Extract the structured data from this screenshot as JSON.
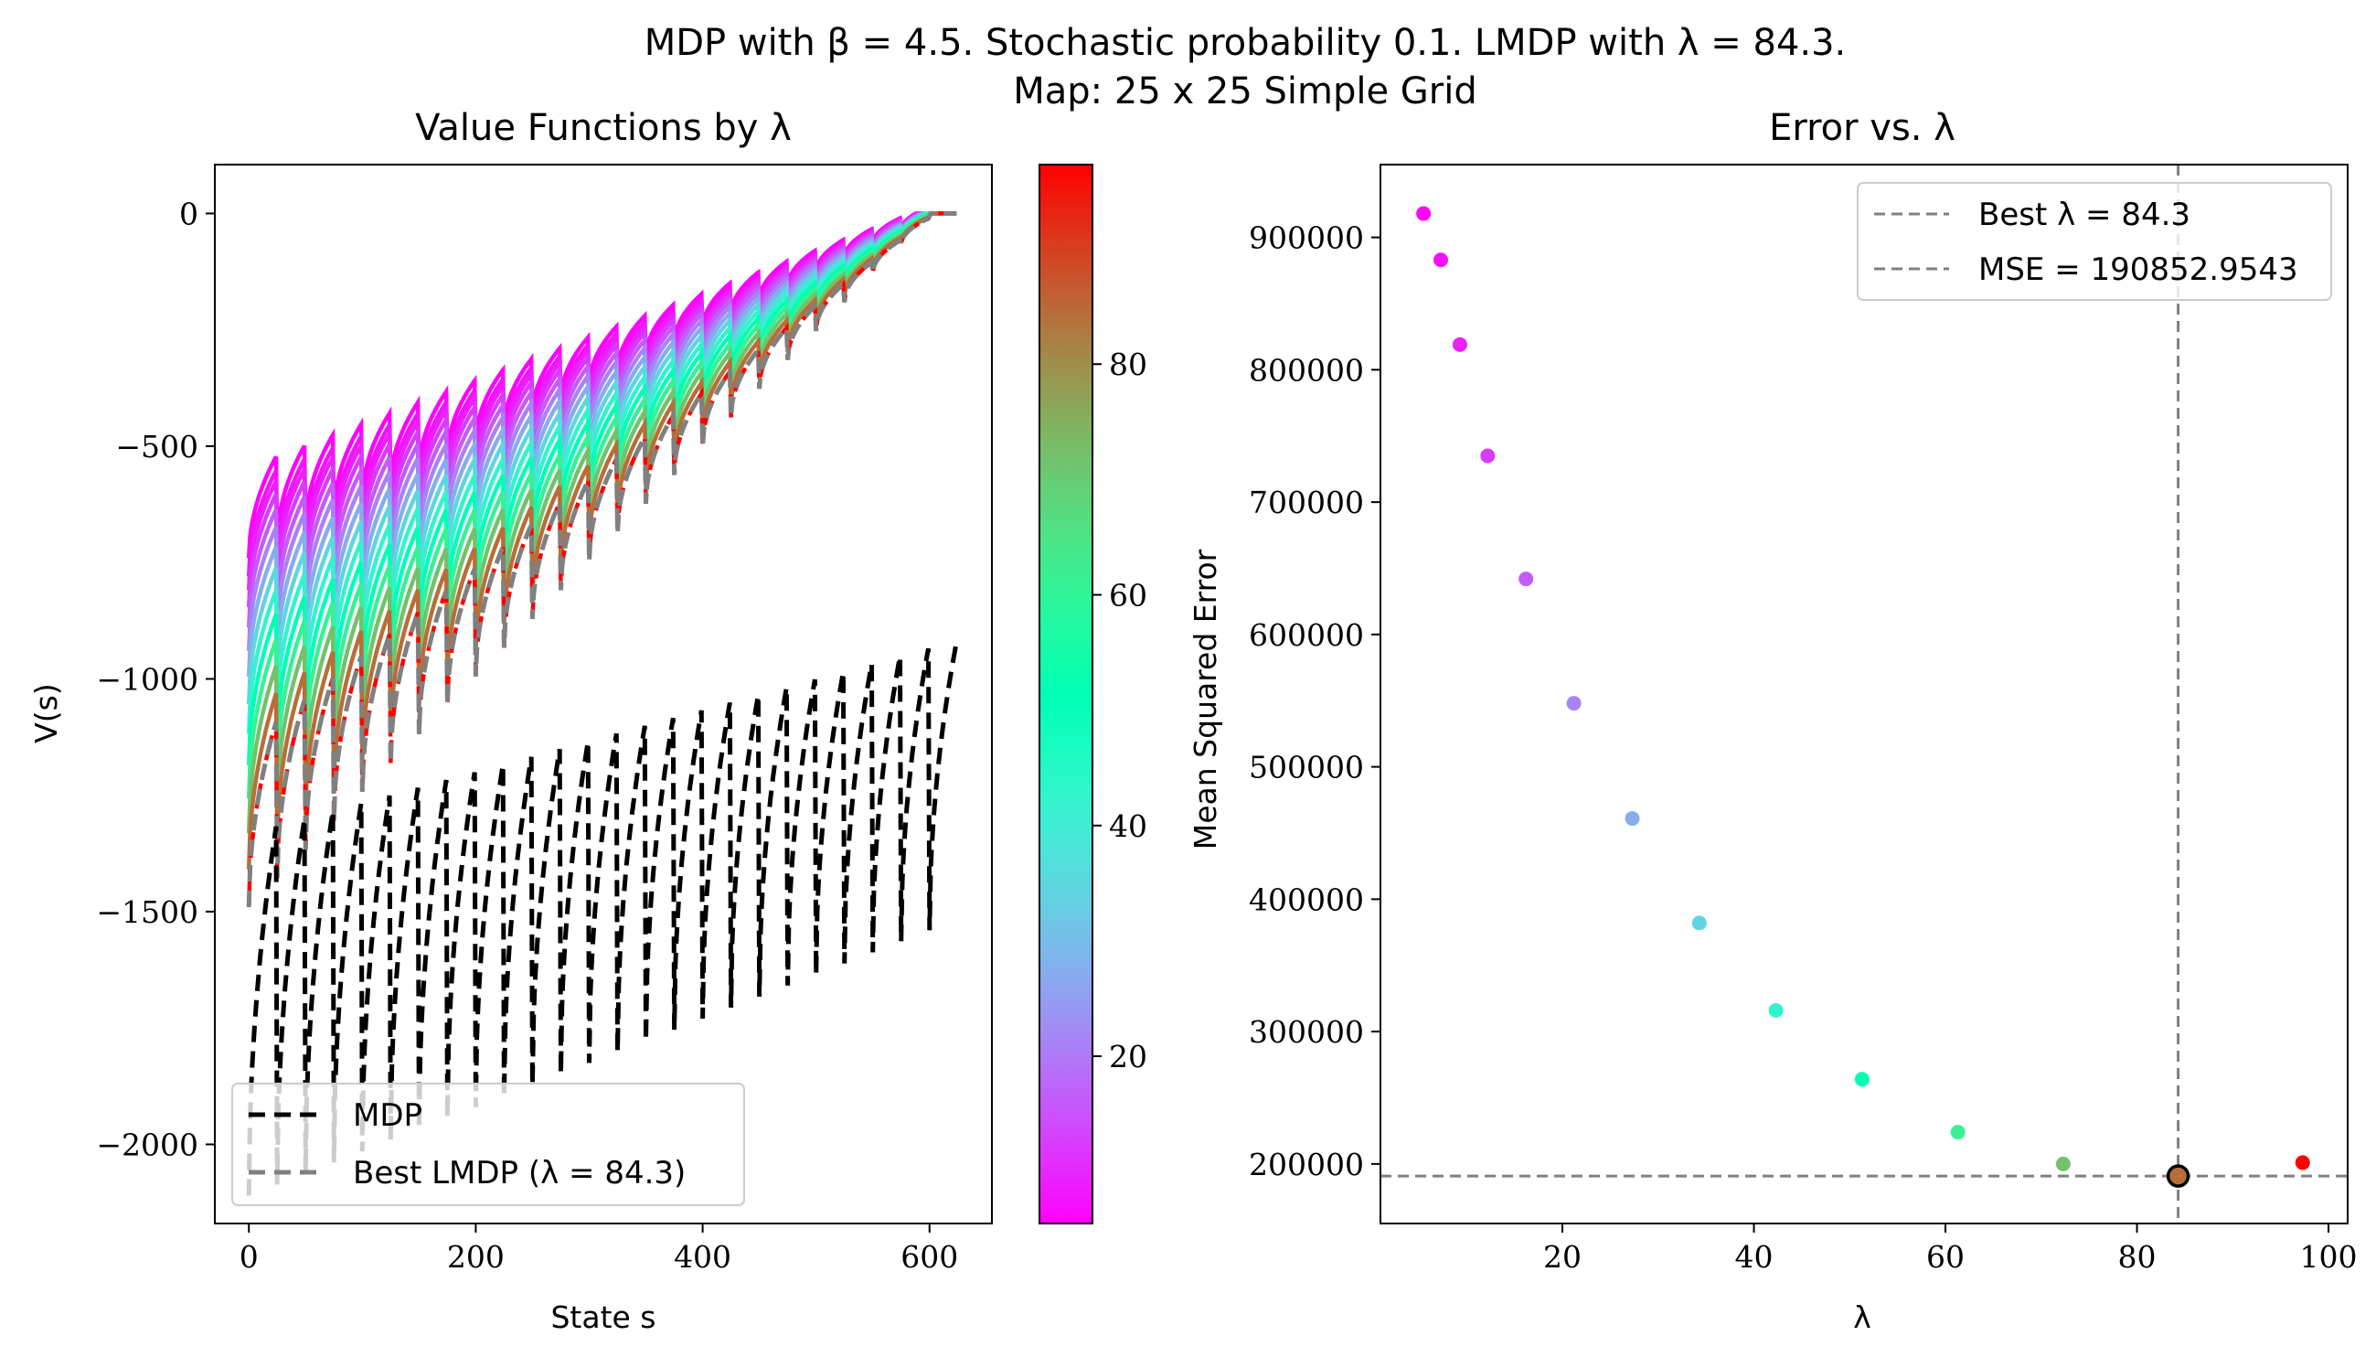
{
  "suptitle": {
    "line1": "MDP with β = 4.5. Stochastic probability 0.1. LMDP with λ = 84.3.",
    "line2": "Map: 25 x 25 Simple Grid"
  },
  "chart_data": [
    {
      "type": "line",
      "title": "Value Functions by λ",
      "xlabel": "State s",
      "ylabel": "V(s)",
      "xlim": [
        -30,
        655
      ],
      "ylim": [
        -2170,
        105
      ],
      "xticks": [
        0,
        200,
        400,
        600
      ],
      "yticks": [
        0,
        -500,
        -1000,
        -1500,
        -2000
      ],
      "xtick_labels": [
        "0",
        "200",
        "400",
        "600"
      ],
      "ytick_labels": [
        "0",
        "−500",
        "−1000",
        "−1500",
        "−2000"
      ],
      "grid_size": 25,
      "n_states": 625,
      "lambdas": [
        5.5,
        7.3,
        9.3,
        12.2,
        16.2,
        21.2,
        27.3,
        34.3,
        42.3,
        51.3,
        61.3,
        72.3,
        84.3,
        97.3
      ],
      "series": [
        {
          "name": "MDP",
          "style": "black dashed",
          "row_start_value": -2110,
          "row_end_min": -1540
        },
        {
          "name": "Best LMDP (λ = 84.3)",
          "style": "gray dashed",
          "lambda": 84.3,
          "row_start_value": -1490
        }
      ],
      "family_row_start_values": {
        "lambda_5.5": -740,
        "lambda_97.3": -1490
      },
      "legend": [
        "MDP",
        "Best LMDP (λ = 84.3)"
      ],
      "legend_position": "lower left",
      "colorbar": {
        "min": 5.5,
        "max": 97.3,
        "ticks": [
          20,
          40,
          60,
          80
        ],
        "tick_labels": [
          "20",
          "40",
          "60",
          "80"
        ],
        "colormap": "rainbow"
      }
    },
    {
      "type": "scatter",
      "title": "Error vs. λ",
      "xlabel": "λ",
      "ylabel": "Mean Squared Error",
      "xlim": [
        1.0,
        102.0
      ],
      "ylim": [
        155000,
        955000
      ],
      "xticks": [
        20,
        40,
        60,
        80,
        100
      ],
      "yticks": [
        200000,
        300000,
        400000,
        500000,
        600000,
        700000,
        800000,
        900000
      ],
      "xtick_labels": [
        "20",
        "40",
        "60",
        "80",
        "100"
      ],
      "ytick_labels": [
        "200000",
        "300000",
        "400000",
        "500000",
        "600000",
        "700000",
        "800000",
        "900000"
      ],
      "points": [
        {
          "x": 5.5,
          "y": 918000
        },
        {
          "x": 7.3,
          "y": 883000
        },
        {
          "x": 9.3,
          "y": 819000
        },
        {
          "x": 12.2,
          "y": 735000
        },
        {
          "x": 16.2,
          "y": 642000
        },
        {
          "x": 21.2,
          "y": 548000
        },
        {
          "x": 27.3,
          "y": 461000
        },
        {
          "x": 34.3,
          "y": 382000
        },
        {
          "x": 42.3,
          "y": 316000
        },
        {
          "x": 51.3,
          "y": 264000
        },
        {
          "x": 61.3,
          "y": 224000
        },
        {
          "x": 72.3,
          "y": 200000
        },
        {
          "x": 84.3,
          "y": 190853
        },
        {
          "x": 97.3,
          "y": 201000
        }
      ],
      "best": {
        "x": 84.3,
        "y": 190852.9543
      },
      "legend": [
        "Best λ = 84.3",
        "MSE = 190852.9543"
      ],
      "legend_position": "upper right"
    }
  ]
}
